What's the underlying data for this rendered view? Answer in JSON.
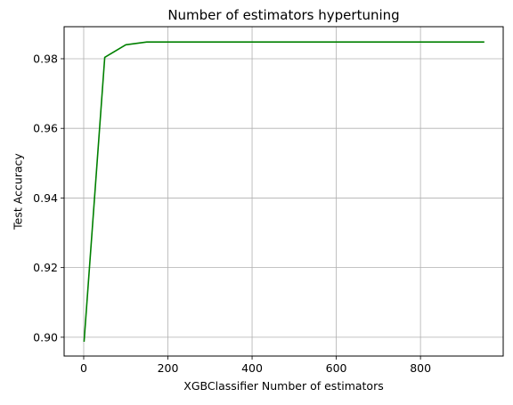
{
  "chart_data": {
    "type": "line",
    "title": "Number of estimators hypertuning",
    "xlabel": "XGBClassifier Number of estimators",
    "ylabel": "Test Accuracy",
    "xlim": [
      -46.5,
      996.5
    ],
    "ylim": [
      0.8946,
      0.9892
    ],
    "xticks": [
      0,
      200,
      400,
      600,
      800
    ],
    "xtick_labels": [
      "0",
      "200",
      "400",
      "600",
      "800"
    ],
    "yticks": [
      0.9,
      0.92,
      0.94,
      0.96,
      0.98
    ],
    "ytick_labels": [
      "0.90",
      "0.92",
      "0.94",
      "0.96",
      "0.98"
    ],
    "grid": true,
    "series": [
      {
        "color": "#008000",
        "x": [
          1,
          50,
          100,
          150,
          200,
          250,
          300,
          350,
          400,
          450,
          500,
          550,
          600,
          650,
          700,
          750,
          800,
          850,
          900,
          950
        ],
        "y": [
          0.8989,
          0.9804,
          0.984,
          0.9848,
          0.9848,
          0.9848,
          0.9848,
          0.9848,
          0.9848,
          0.9848,
          0.9848,
          0.9848,
          0.9848,
          0.9848,
          0.9848,
          0.9848,
          0.9848,
          0.9848,
          0.9848,
          0.9848
        ]
      }
    ]
  }
}
